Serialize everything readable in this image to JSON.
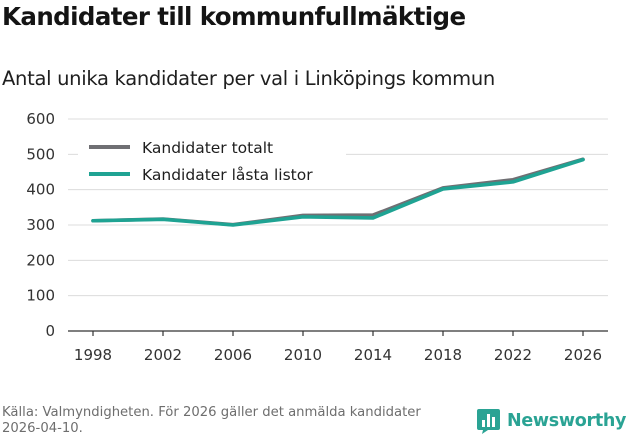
{
  "chart_data": {
    "type": "line",
    "title": "Kandidater till kommunfullmäktige",
    "subtitle": "Antal unika kandidater per val i Linköpings kommun",
    "xlabel": "",
    "ylabel": "",
    "x": [
      1998,
      2002,
      2006,
      2010,
      2014,
      2018,
      2022,
      2026
    ],
    "xticks": [
      "1998",
      "2002",
      "2006",
      "2010",
      "2014",
      "2018",
      "2022",
      "2026"
    ],
    "yticks": [
      "0",
      "100",
      "200",
      "300",
      "400",
      "500",
      "600"
    ],
    "ylim": [
      0,
      600
    ],
    "grid": "horizontal",
    "legend_position": "top-left",
    "series": [
      {
        "name": "Kandidater totalt",
        "color": "#6f6f73",
        "values": [
          312,
          317,
          301,
          327,
          328,
          405,
          428,
          486
        ]
      },
      {
        "name": "Kandidater låsta listor",
        "color": "#1fa393",
        "values": [
          312,
          316,
          300,
          323,
          320,
          402,
          422,
          485
        ]
      }
    ]
  },
  "footer": {
    "source": "Källa: Valmyndigheten. För 2026 gäller det anmälda kandidater 2026-04-10.",
    "brand": "Newsworthy",
    "brand_color": "#2aa394",
    "brand_icon": "bar-chart-icon"
  }
}
